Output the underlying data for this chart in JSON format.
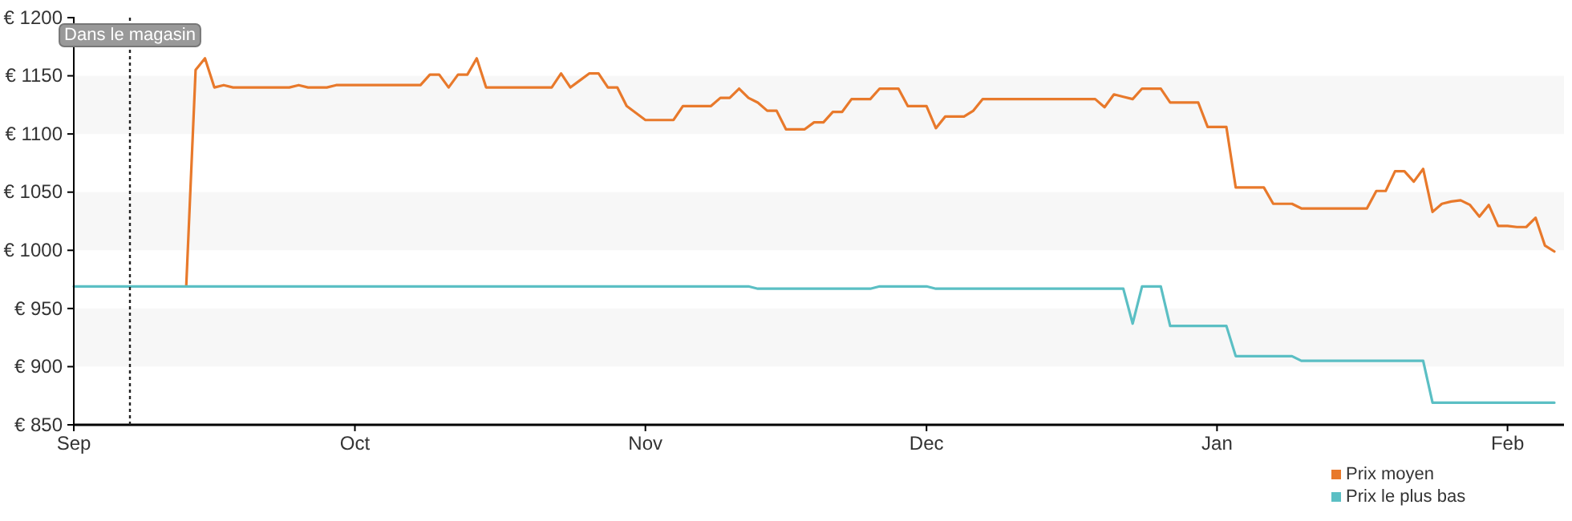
{
  "chart_data": {
    "type": "line",
    "legend": "bottom right",
    "marker": "none",
    "line_style": "solid",
    "categories": [
      "Sep",
      null,
      null,
      null,
      null,
      null,
      null,
      null,
      null,
      null,
      null,
      null,
      null,
      null,
      null,
      null,
      null,
      null,
      null,
      null,
      null,
      null,
      null,
      null,
      null,
      null,
      null,
      null,
      null,
      null,
      "Oct",
      null,
      null,
      null,
      null,
      null,
      null,
      null,
      null,
      null,
      null,
      null,
      null,
      null,
      null,
      null,
      null,
      null,
      null,
      null,
      null,
      null,
      null,
      null,
      null,
      null,
      null,
      null,
      null,
      null,
      null,
      "Nov",
      null,
      null,
      null,
      null,
      null,
      null,
      null,
      null,
      null,
      null,
      null,
      null,
      null,
      null,
      null,
      null,
      null,
      null,
      null,
      null,
      null,
      null,
      null,
      null,
      null,
      null,
      null,
      null,
      null,
      "Dec",
      null,
      null,
      null,
      null,
      null,
      null,
      null,
      null,
      null,
      null,
      null,
      null,
      null,
      null,
      null,
      null,
      null,
      null,
      null,
      null,
      null,
      null,
      null,
      null,
      null,
      null,
      null,
      null,
      null,
      null,
      "Jan",
      null,
      null,
      null,
      null,
      null,
      null,
      null,
      null,
      null,
      null,
      null,
      null,
      null,
      null,
      null,
      null,
      null,
      null,
      null,
      null,
      null,
      null,
      null,
      null,
      null,
      null,
      null,
      null,
      null,
      null,
      "Feb",
      null,
      null,
      null,
      null,
      null
    ],
    "ylim": [
      850,
      1200
    ],
    "yticks": [
      {
        "value": 850,
        "label": "€ 850"
      },
      {
        "value": 900,
        "label": "€ 900"
      },
      {
        "value": 950,
        "label": "€ 950"
      },
      {
        "value": 1000,
        "label": "€ 1000"
      },
      {
        "value": 1050,
        "label": "€ 1050"
      },
      {
        "value": 1100,
        "label": "€ 1100"
      },
      {
        "value": 1150,
        "label": "€ 1150"
      },
      {
        "value": 1200,
        "label": "€ 1200"
      }
    ],
    "annotations": [
      "Dans le magasin"
    ],
    "series": [
      {
        "name": "Prix moyen",
        "color": "#e8792b",
        "values": [
          null,
          null,
          null,
          null,
          null,
          null,
          null,
          null,
          null,
          null,
          null,
          null,
          969,
          1155,
          1165,
          1140,
          1142,
          1140,
          1140,
          1140,
          1140,
          1140,
          1140,
          1140,
          1142,
          1140,
          1140,
          1140,
          1142,
          1142,
          1142,
          1142,
          1142,
          1142,
          1142,
          1142,
          1142,
          1142,
          1151,
          1151,
          1140,
          1151,
          1151,
          1165,
          1140,
          1140,
          1140,
          1140,
          1140,
          1140,
          1140,
          1140,
          1152,
          1140,
          1146,
          1152,
          1152,
          1140,
          1140,
          1124,
          1118,
          1112,
          1112,
          1112,
          1112,
          1124,
          1124,
          1124,
          1124,
          1131,
          1131,
          1139,
          1131,
          1127,
          1120,
          1120,
          1104,
          1104,
          1104,
          1110,
          1110,
          1119,
          1119,
          1130,
          1130,
          1130,
          1139,
          1139,
          1139,
          1124,
          1124,
          1124,
          1105,
          1115,
          1115,
          1115,
          1120,
          1130,
          1130,
          1130,
          1130,
          1130,
          1130,
          1130,
          1130,
          1130,
          1130,
          1130,
          1130,
          1130,
          1123,
          1134,
          1132,
          1130,
          1139,
          1139,
          1139,
          1127,
          1127,
          1127,
          1127,
          1106,
          1106,
          1106,
          1054,
          1054,
          1054,
          1054,
          1040,
          1040,
          1040,
          1036,
          1036,
          1036,
          1036,
          1036,
          1036,
          1036,
          1036,
          1051,
          1051,
          1068,
          1068,
          1059,
          1070,
          1033,
          1040,
          1042,
          1043,
          1039,
          1029,
          1039,
          1021,
          1021,
          1020,
          1020,
          1028,
          1004,
          999
        ]
      },
      {
        "name": "Prix le plus bas",
        "color": "#5bbfc4",
        "values": [
          969,
          969,
          969,
          969,
          969,
          969,
          969,
          969,
          969,
          969,
          969,
          969,
          969,
          969,
          969,
          969,
          969,
          969,
          969,
          969,
          969,
          969,
          969,
          969,
          969,
          969,
          969,
          969,
          969,
          969,
          969,
          969,
          969,
          969,
          969,
          969,
          969,
          969,
          969,
          969,
          969,
          969,
          969,
          969,
          969,
          969,
          969,
          969,
          969,
          969,
          969,
          969,
          969,
          969,
          969,
          969,
          969,
          969,
          969,
          969,
          969,
          969,
          969,
          969,
          969,
          969,
          969,
          969,
          969,
          969,
          969,
          969,
          969,
          967,
          967,
          967,
          967,
          967,
          967,
          967,
          967,
          967,
          967,
          967,
          967,
          967,
          969,
          969,
          969,
          969,
          969,
          969,
          967,
          967,
          967,
          967,
          967,
          967,
          967,
          967,
          967,
          967,
          967,
          967,
          967,
          967,
          967,
          967,
          967,
          967,
          967,
          967,
          967,
          937,
          969,
          969,
          969,
          935,
          935,
          935,
          935,
          935,
          935,
          935,
          909,
          909,
          909,
          909,
          909,
          909,
          909,
          905,
          905,
          905,
          905,
          905,
          905,
          905,
          905,
          905,
          905,
          905,
          905,
          905,
          905,
          869,
          869,
          869,
          869,
          869,
          869,
          869,
          869,
          869,
          869,
          869,
          869,
          869,
          869
        ]
      }
    ]
  }
}
